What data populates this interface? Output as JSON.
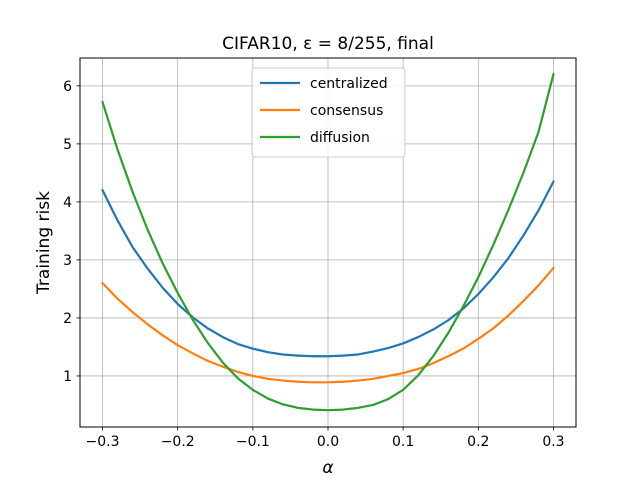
{
  "chart_data": {
    "type": "line",
    "title": "CIFAR10, ε = 8/255, final",
    "xlabel": "α",
    "ylabel": "Training risk",
    "xlim": [
      -0.33,
      0.33
    ],
    "ylim": [
      0.12,
      6.48
    ],
    "xticks": [
      -0.3,
      -0.2,
      -0.1,
      0.0,
      0.1,
      0.2,
      0.3
    ],
    "xtick_labels": [
      "−0.3",
      "−0.2",
      "−0.1",
      "0.0",
      "0.1",
      "0.2",
      "0.3"
    ],
    "yticks": [
      1,
      2,
      3,
      4,
      5,
      6
    ],
    "ytick_labels": [
      "1",
      "2",
      "3",
      "4",
      "5",
      "6"
    ],
    "grid": true,
    "legend_position": "top-center",
    "x": [
      -0.3,
      -0.28,
      -0.26,
      -0.24,
      -0.22,
      -0.2,
      -0.18,
      -0.16,
      -0.14,
      -0.12,
      -0.1,
      -0.08,
      -0.06,
      -0.04,
      -0.02,
      0.0,
      0.02,
      0.04,
      0.06,
      0.08,
      0.1,
      0.12,
      0.14,
      0.16,
      0.18,
      0.2,
      0.22,
      0.24,
      0.26,
      0.28,
      0.3
    ],
    "series": [
      {
        "name": "centralized",
        "color": "#1f77b4",
        "values": [
          4.2,
          3.68,
          3.22,
          2.85,
          2.52,
          2.24,
          2.01,
          1.82,
          1.67,
          1.55,
          1.47,
          1.41,
          1.37,
          1.35,
          1.34,
          1.34,
          1.35,
          1.37,
          1.42,
          1.48,
          1.56,
          1.67,
          1.8,
          1.96,
          2.16,
          2.41,
          2.7,
          3.03,
          3.42,
          3.85,
          4.35
        ]
      },
      {
        "name": "consensus",
        "color": "#ff7f0e",
        "values": [
          2.6,
          2.33,
          2.1,
          1.89,
          1.7,
          1.53,
          1.39,
          1.26,
          1.16,
          1.07,
          1.0,
          0.95,
          0.92,
          0.9,
          0.89,
          0.89,
          0.9,
          0.92,
          0.95,
          1.0,
          1.05,
          1.12,
          1.22,
          1.34,
          1.47,
          1.64,
          1.82,
          2.04,
          2.29,
          2.56,
          2.86
        ]
      },
      {
        "name": "diffusion",
        "color": "#2ca02c",
        "values": [
          5.72,
          4.9,
          4.17,
          3.52,
          2.94,
          2.43,
          1.97,
          1.57,
          1.23,
          0.96,
          0.76,
          0.61,
          0.51,
          0.45,
          0.42,
          0.41,
          0.42,
          0.45,
          0.5,
          0.6,
          0.76,
          1.01,
          1.34,
          1.74,
          2.2,
          2.7,
          3.26,
          3.86,
          4.5,
          5.2,
          6.2
        ]
      }
    ]
  }
}
